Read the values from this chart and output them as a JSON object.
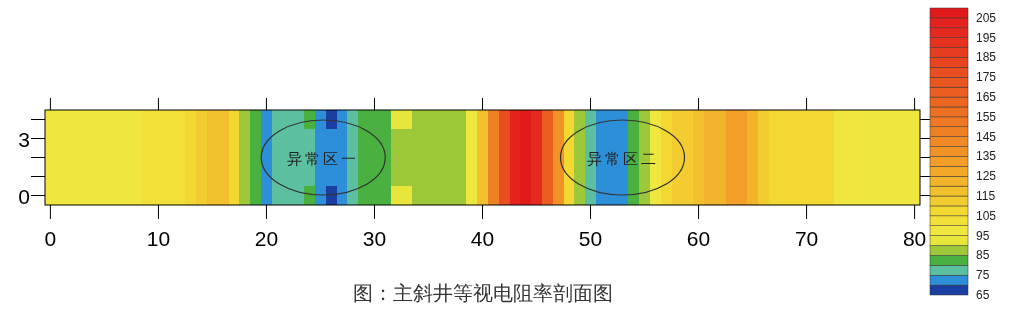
{
  "chart_data": {
    "type": "heatmap",
    "categories": [
      "0",
      null,
      null,
      null,
      null,
      null,
      null,
      null,
      null,
      null,
      "10",
      null,
      null,
      null,
      null,
      null,
      null,
      null,
      null,
      null,
      "20",
      null,
      null,
      null,
      null,
      null,
      null,
      null,
      null,
      null,
      "30",
      null,
      null,
      null,
      null,
      null,
      null,
      null,
      null,
      null,
      "40",
      null,
      null,
      null,
      null,
      null,
      null,
      null,
      null,
      null,
      "50",
      null,
      null,
      null,
      null,
      null,
      null,
      null,
      null,
      null,
      "60",
      null,
      null,
      null,
      null,
      null,
      null,
      null,
      null,
      null,
      "70",
      null,
      null,
      null,
      null,
      null,
      null,
      null,
      null,
      null,
      "80"
    ],
    "y_categories": [
      null,
      "3",
      null,
      null,
      "0"
    ],
    "cells": [
      [
        97,
        97,
        97,
        97,
        97,
        97,
        97,
        97,
        97,
        100,
        102,
        102,
        102,
        107,
        112,
        118,
        118,
        108,
        88,
        82,
        72,
        77,
        77,
        77,
        82,
        72,
        67,
        72,
        77,
        82,
        82,
        82,
        92,
        92,
        87,
        87,
        87,
        87,
        87,
        95,
        115,
        145,
        175,
        200,
        207,
        195,
        165,
        135,
        105,
        85,
        77,
        72,
        72,
        72,
        82,
        88,
        97,
        105,
        112,
        112,
        117,
        122,
        122,
        130,
        130,
        120,
        110,
        105,
        105,
        105,
        105,
        105,
        105,
        97,
        97,
        97,
        97,
        97,
        97,
        97,
        97
      ],
      [
        97,
        97,
        97,
        97,
        97,
        97,
        97,
        97,
        97,
        100,
        102,
        102,
        102,
        107,
        112,
        118,
        118,
        108,
        88,
        82,
        72,
        77,
        77,
        77,
        77,
        72,
        72,
        72,
        77,
        82,
        82,
        82,
        87,
        87,
        87,
        87,
        87,
        87,
        87,
        95,
        115,
        145,
        175,
        200,
        207,
        195,
        165,
        135,
        105,
        85,
        77,
        72,
        72,
        72,
        82,
        88,
        97,
        105,
        112,
        112,
        117,
        122,
        122,
        130,
        130,
        120,
        110,
        105,
        105,
        105,
        105,
        105,
        105,
        97,
        97,
        97,
        97,
        97,
        97,
        97,
        97
      ],
      [
        97,
        97,
        97,
        97,
        97,
        97,
        97,
        97,
        97,
        100,
        102,
        102,
        102,
        107,
        112,
        118,
        118,
        108,
        88,
        82,
        72,
        77,
        77,
        77,
        77,
        72,
        72,
        72,
        77,
        82,
        82,
        82,
        87,
        87,
        87,
        87,
        87,
        87,
        87,
        95,
        115,
        145,
        175,
        200,
        207,
        195,
        165,
        135,
        105,
        85,
        77,
        72,
        72,
        72,
        82,
        88,
        97,
        105,
        112,
        112,
        117,
        122,
        122,
        130,
        130,
        120,
        110,
        105,
        105,
        105,
        105,
        105,
        105,
        97,
        97,
        97,
        97,
        97,
        97,
        97,
        97
      ],
      [
        97,
        97,
        97,
        97,
        97,
        97,
        97,
        97,
        97,
        100,
        102,
        102,
        102,
        107,
        112,
        118,
        118,
        108,
        88,
        82,
        72,
        77,
        77,
        77,
        77,
        72,
        72,
        72,
        77,
        82,
        82,
        82,
        87,
        87,
        87,
        87,
        87,
        87,
        87,
        95,
        115,
        145,
        175,
        200,
        207,
        195,
        165,
        135,
        105,
        85,
        77,
        72,
        72,
        72,
        82,
        88,
        97,
        105,
        112,
        112,
        117,
        122,
        122,
        130,
        130,
        120,
        110,
        105,
        105,
        105,
        105,
        105,
        105,
        97,
        97,
        97,
        97,
        97,
        97,
        97,
        97
      ],
      [
        97,
        97,
        97,
        97,
        97,
        97,
        97,
        97,
        97,
        100,
        102,
        102,
        102,
        107,
        112,
        118,
        118,
        108,
        88,
        82,
        72,
        77,
        77,
        77,
        82,
        72,
        67,
        72,
        77,
        82,
        82,
        82,
        92,
        92,
        87,
        87,
        87,
        87,
        87,
        95,
        115,
        145,
        175,
        200,
        207,
        195,
        165,
        135,
        105,
        85,
        77,
        72,
        72,
        72,
        82,
        88,
        97,
        105,
        112,
        112,
        117,
        122,
        122,
        130,
        130,
        120,
        110,
        105,
        105,
        105,
        105,
        105,
        105,
        97,
        97,
        97,
        97,
        97,
        97,
        97,
        97
      ]
    ],
    "clim": [
      65,
      210
    ],
    "cticks": [
      65,
      75,
      85,
      95,
      105,
      115,
      125,
      135,
      145,
      155,
      165,
      175,
      185,
      195,
      205
    ],
    "colors": [
      "#1a3fa0",
      "#2d8fd8",
      "#5cc0a0",
      "#4ab040",
      "#9cc83a",
      "#e8e63a",
      "#f0e640",
      "#f2e038",
      "#f2d830",
      "#f2cc30",
      "#f2c02c",
      "#f2b42a",
      "#f2a828",
      "#f29e28",
      "#f09226",
      "#f08a26",
      "#ee8024",
      "#ee7824",
      "#ec7022",
      "#ec6622",
      "#ea5e22",
      "#ea5620",
      "#e84e20",
      "#e84420",
      "#e63c20",
      "#e6321e",
      "#e42a1e",
      "#e4221e",
      "#e21a1c"
    ],
    "annotations": [
      "异常区一",
      "异常区二",
      "图：主斜井等视电阻率剖面图"
    ]
  }
}
